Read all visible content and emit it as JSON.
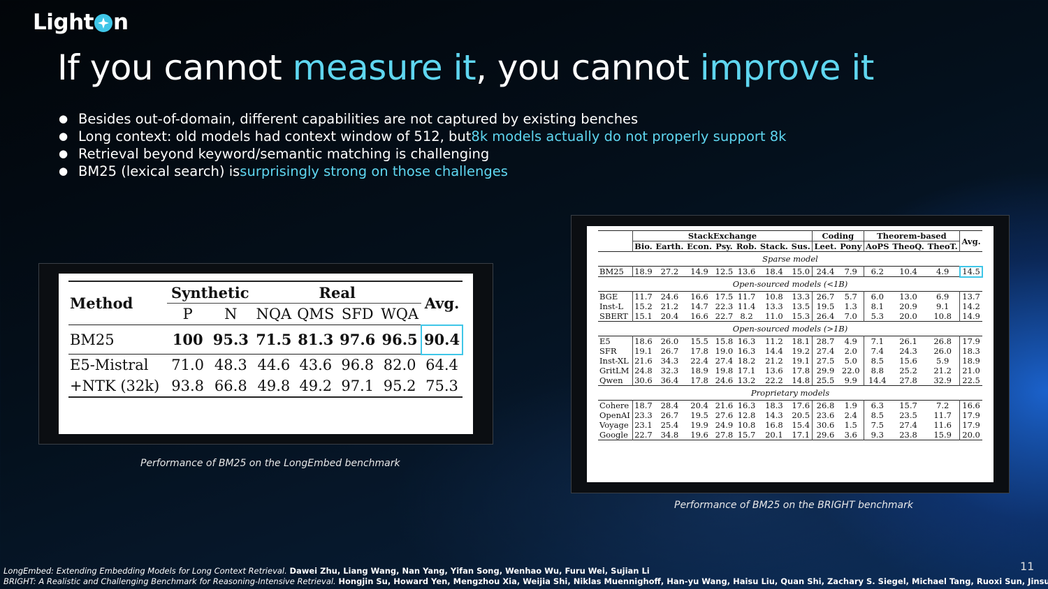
{
  "logo": {
    "text_before": "Light",
    "text_after": "n"
  },
  "title": {
    "part1": "If you cannot ",
    "part2": "measure it",
    "part3": ", you cannot ",
    "part4": "improve it"
  },
  "bullets": [
    {
      "text": "Besides out-of-domain, different capabilities are not captured by existing benches",
      "highlight": ""
    },
    {
      "text": "Long context: old models had context window of 512, but ",
      "highlight": "8k models actually do not properly support 8k"
    },
    {
      "text": "Retrieval beyond keyword/semantic matching is challenging",
      "highlight": ""
    },
    {
      "text": "BM25 (lexical search) is ",
      "highlight": "surprisingly strong on those challenges"
    }
  ],
  "longembed": {
    "caption": "Performance of BM25 on the LongEmbed benchmark",
    "header": {
      "method": "Method",
      "synthetic": "Synthetic",
      "real": "Real",
      "avg": "Avg.",
      "cols": [
        "P",
        "N",
        "NQA",
        "QMS",
        "SFD",
        "WQA"
      ]
    },
    "rows": [
      {
        "name": "BM25",
        "values": [
          "100",
          "95.3",
          "71.5",
          "81.3",
          "97.6",
          "96.5"
        ],
        "avg": "90.4"
      },
      {
        "name": "E5-Mistral",
        "values": [
          "71.0",
          "48.3",
          "44.6",
          "43.6",
          "96.8",
          "82.0"
        ],
        "avg": "64.4"
      },
      {
        "name": "+NTK (32k)",
        "values": [
          "93.8",
          "66.8",
          "49.8",
          "49.2",
          "97.1",
          "95.2"
        ],
        "avg": "75.3"
      }
    ]
  },
  "bright": {
    "caption": "Performance of BM25 on the BRIGHT benchmark",
    "groups": {
      "stackexchange": "StackExchange",
      "coding": "Coding",
      "theorem": "Theorem-based",
      "avg": "Avg."
    },
    "cols": [
      "Bio.",
      "Earth.",
      "Econ.",
      "Psy.",
      "Rob.",
      "Stack.",
      "Sus.",
      "Leet.",
      "Pony",
      "AoPS",
      "TheoQ.",
      "TheoT."
    ],
    "sections": [
      {
        "label": "Sparse model",
        "rows": [
          {
            "name": "BM25",
            "values": [
              "18.9",
              "27.2",
              "14.9",
              "12.5",
              "13.6",
              "18.4",
              "15.0",
              "24.4",
              "7.9",
              "6.2",
              "10.4",
              "4.9"
            ],
            "avg": "14.5"
          }
        ]
      },
      {
        "label": "Open-sourced models (<1B)",
        "rows": [
          {
            "name": "BGE",
            "values": [
              "11.7",
              "24.6",
              "16.6",
              "17.5",
              "11.7",
              "10.8",
              "13.3",
              "26.7",
              "5.7",
              "6.0",
              "13.0",
              "6.9"
            ],
            "avg": "13.7"
          },
          {
            "name": "Inst-L",
            "values": [
              "15.2",
              "21.2",
              "14.7",
              "22.3",
              "11.4",
              "13.3",
              "13.5",
              "19.5",
              "1.3",
              "8.1",
              "20.9",
              "9.1"
            ],
            "avg": "14.2"
          },
          {
            "name": "SBERT",
            "values": [
              "15.1",
              "20.4",
              "16.6",
              "22.7",
              "8.2",
              "11.0",
              "15.3",
              "26.4",
              "7.0",
              "5.3",
              "20.0",
              "10.8"
            ],
            "avg": "14.9"
          }
        ]
      },
      {
        "label": "Open-sourced models (>1B)",
        "rows": [
          {
            "name": "E5",
            "values": [
              "18.6",
              "26.0",
              "15.5",
              "15.8",
              "16.3",
              "11.2",
              "18.1",
              "28.7",
              "4.9",
              "7.1",
              "26.1",
              "26.8"
            ],
            "avg": "17.9"
          },
          {
            "name": "SFR",
            "values": [
              "19.1",
              "26.7",
              "17.8",
              "19.0",
              "16.3",
              "14.4",
              "19.2",
              "27.4",
              "2.0",
              "7.4",
              "24.3",
              "26.0"
            ],
            "avg": "18.3"
          },
          {
            "name": "Inst-XL",
            "values": [
              "21.6",
              "34.3",
              "22.4",
              "27.4",
              "18.2",
              "21.2",
              "19.1",
              "27.5",
              "5.0",
              "8.5",
              "15.6",
              "5.9"
            ],
            "avg": "18.9"
          },
          {
            "name": "GritLM",
            "values": [
              "24.8",
              "32.3",
              "18.9",
              "19.8",
              "17.1",
              "13.6",
              "17.8",
              "29.9",
              "22.0",
              "8.8",
              "25.2",
              "21.2"
            ],
            "avg": "21.0"
          },
          {
            "name": "Qwen",
            "values": [
              "30.6",
              "36.4",
              "17.8",
              "24.6",
              "13.2",
              "22.2",
              "14.8",
              "25.5",
              "9.9",
              "14.4",
              "27.8",
              "32.9"
            ],
            "avg": "22.5"
          }
        ]
      },
      {
        "label": "Proprietary models",
        "rows": [
          {
            "name": "Cohere",
            "values": [
              "18.7",
              "28.4",
              "20.4",
              "21.6",
              "16.3",
              "18.3",
              "17.6",
              "26.8",
              "1.9",
              "6.3",
              "15.7",
              "7.2"
            ],
            "avg": "16.6"
          },
          {
            "name": "OpenAI",
            "values": [
              "23.3",
              "26.7",
              "19.5",
              "27.6",
              "12.8",
              "14.3",
              "20.5",
              "23.6",
              "2.4",
              "8.5",
              "23.5",
              "11.7"
            ],
            "avg": "17.9"
          },
          {
            "name": "Voyage",
            "values": [
              "23.1",
              "25.4",
              "19.9",
              "24.9",
              "10.8",
              "16.8",
              "15.4",
              "30.6",
              "1.5",
              "7.5",
              "27.4",
              "11.6"
            ],
            "avg": "17.9"
          },
          {
            "name": "Google",
            "values": [
              "22.7",
              "34.8",
              "19.6",
              "27.8",
              "15.7",
              "20.1",
              "17.1",
              "29.6",
              "3.6",
              "9.3",
              "23.8",
              "15.9"
            ],
            "avg": "20.0"
          }
        ]
      }
    ]
  },
  "references": [
    {
      "title": "LongEmbed: Extending Embedding Models for Long Context Retrieval.",
      "authors": "Dawei Zhu, Liang Wang, Nan Yang, Yifan Song, Wenhao Wu, Furu Wei, Sujian Li"
    },
    {
      "title": "BRIGHT: A Realistic and Challenging Benchmark for Reasoning-Intensive Retrieval.",
      "authors": "Hongjin Su, Howard Yen, Mengzhou Xia, Weijia Shi, Niklas Muennighoff, Han-yu Wang, Haisu Liu, Quan Shi, Zachary S. Siegel, Michael Tang, Ruoxi Sun, Jinsung"
    }
  ],
  "page_number": "11",
  "colors": {
    "accent": "#5fd6f0",
    "highlight_box": "#3fc6e8"
  }
}
